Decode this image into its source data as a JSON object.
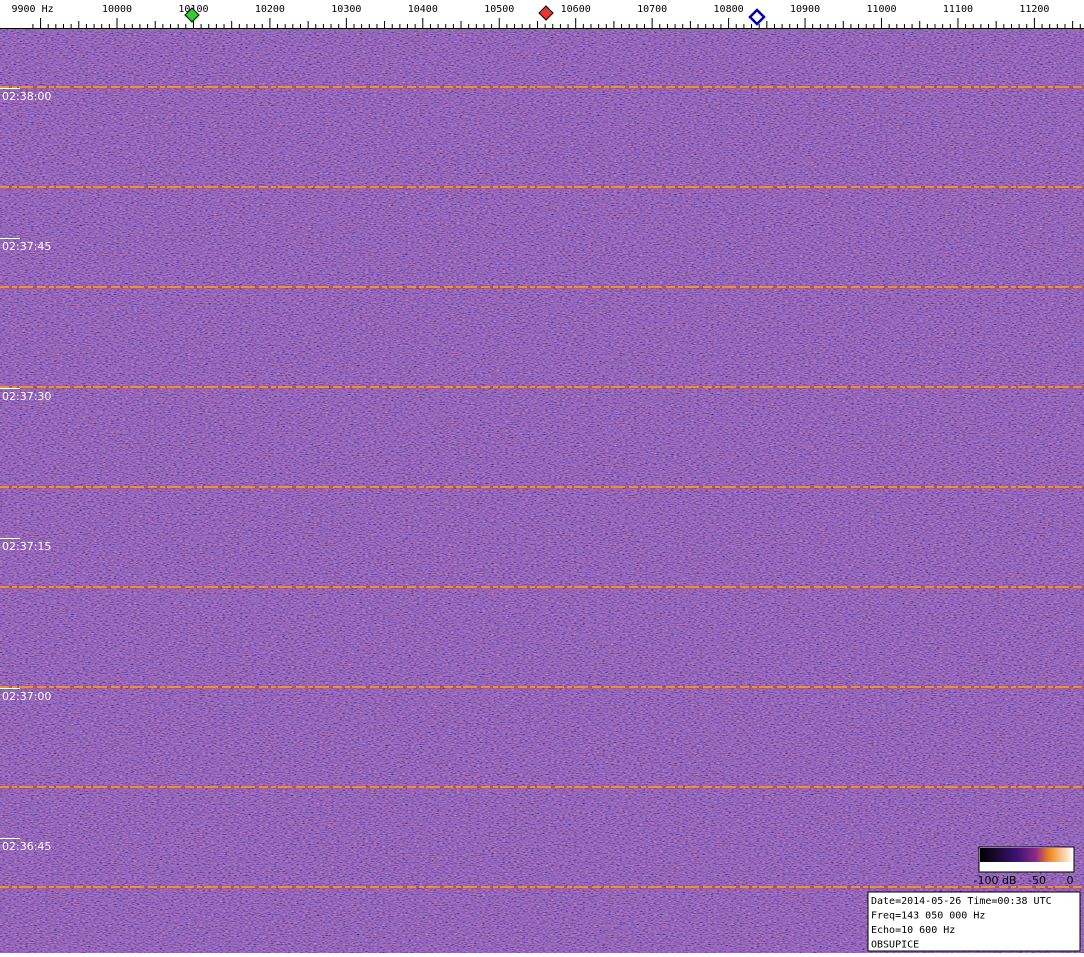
{
  "axis": {
    "freq_labels": [
      "9900 Hz",
      "10000",
      "10100",
      "10200",
      "10300",
      "10400",
      "10500",
      "10600",
      "10700",
      "10800",
      "10900",
      "11000",
      "11100",
      "11200"
    ]
  },
  "time_labels": [
    "02:38:00",
    "02:37:45",
    "02:37:30",
    "02:37:15",
    "02:37:00",
    "02:36:45"
  ],
  "colorbar": {
    "labels": [
      "-100 dB",
      "-50",
      "0"
    ]
  },
  "info": {
    "lines": [
      "Date=2014-05-26 Time=00:38 UTC",
      "Freq=143 050 000 Hz",
      "Echo=10 600 Hz",
      "OBSUPICE"
    ]
  }
}
